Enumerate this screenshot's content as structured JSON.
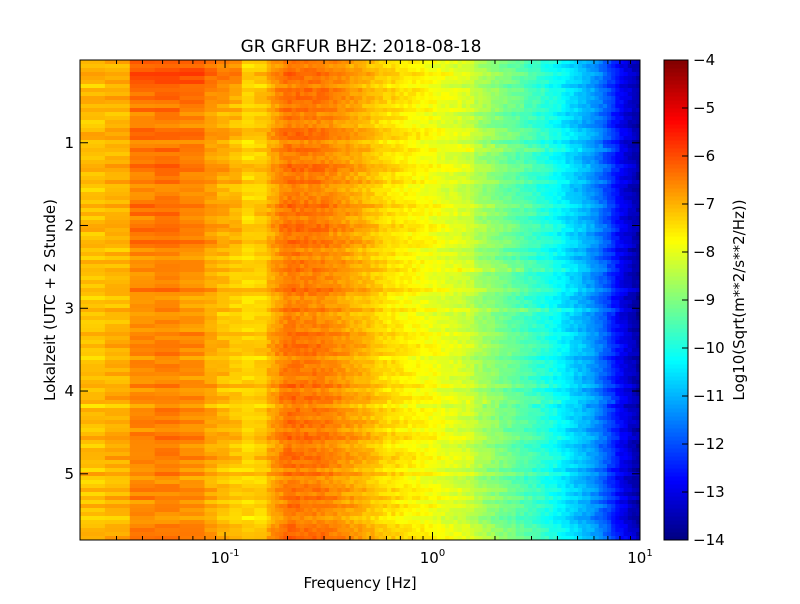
{
  "chart_data": {
    "type": "heatmap",
    "title": "GR GRFUR BHZ: 2018-08-18",
    "xlabel": "Frequency [Hz]",
    "ylabel": "Lokalzeit (UTC + 2 Stunde)",
    "x_scale": "log",
    "xlim": [
      0.02,
      10
    ],
    "x_ticks": [
      {
        "value": 0.1,
        "base": "10",
        "exp": "-1"
      },
      {
        "value": 1,
        "base": "10",
        "exp": "0"
      },
      {
        "value": 10,
        "base": "10",
        "exp": "1"
      }
    ],
    "ylim": [
      0,
      5.8
    ],
    "y_inverted": true,
    "y_ticks": [
      {
        "value": 1,
        "label": "1"
      },
      {
        "value": 2,
        "label": "2"
      },
      {
        "value": 3,
        "label": "3"
      },
      {
        "value": 4,
        "label": "4"
      },
      {
        "value": 5,
        "label": "5"
      }
    ],
    "colorbar": {
      "label": "Log10(Sqrt(m**2/s**2/Hz))",
      "range": [
        -14,
        -4
      ],
      "colormap": "jet",
      "ticks": [
        {
          "value": -4,
          "label": "−4"
        },
        {
          "value": -5,
          "label": "−5"
        },
        {
          "value": -6,
          "label": "−6"
        },
        {
          "value": -7,
          "label": "−7"
        },
        {
          "value": -8,
          "label": "−8"
        },
        {
          "value": -9,
          "label": "−9"
        },
        {
          "value": -10,
          "label": "−10"
        },
        {
          "value": -11,
          "label": "−11"
        },
        {
          "value": -12,
          "label": "−12"
        },
        {
          "value": -13,
          "label": "−13"
        },
        {
          "value": -14,
          "label": "−14"
        }
      ]
    },
    "spectrum_profile": {
      "frequencies_hz": [
        0.02,
        0.03,
        0.04,
        0.06,
        0.08,
        0.1,
        0.14,
        0.2,
        0.3,
        0.5,
        0.7,
        1.0,
        1.5,
        2.0,
        3.0,
        4.0,
        5.0,
        6.0,
        7.0,
        8.0,
        10.0
      ],
      "values": [
        -7.2,
        -7.0,
        -6.6,
        -6.5,
        -6.8,
        -7.1,
        -7.4,
        -6.4,
        -6.5,
        -7.1,
        -7.7,
        -8.0,
        -8.4,
        -8.9,
        -9.6,
        -10.2,
        -10.8,
        -11.3,
        -12.0,
        -12.8,
        -13.7
      ]
    },
    "time_rows": 120,
    "grid": false
  }
}
